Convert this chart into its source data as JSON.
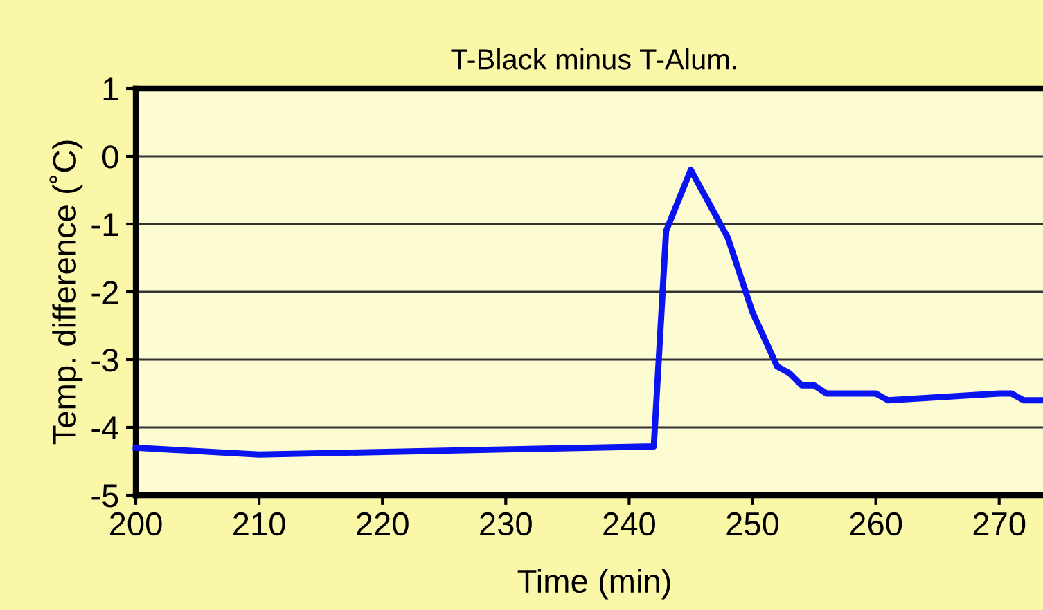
{
  "chart_data": {
    "type": "line",
    "title": "T-Black minus T-Alum.",
    "xlabel": "Time (min)",
    "ylabel": "Temp. difference (˚C)",
    "series": [
      {
        "color": "#0a14f0",
        "x": [
          200,
          210,
          242,
          243,
          245,
          248,
          250,
          252,
          253,
          254,
          255,
          256,
          260,
          261,
          270,
          271,
          272,
          274
        ],
        "values": [
          -4.3,
          -4.4,
          -4.28,
          -1.1,
          -0.2,
          -1.2,
          -2.3,
          -3.1,
          -3.2,
          -3.38,
          -3.38,
          -3.5,
          -3.5,
          -3.6,
          -3.5,
          -3.5,
          -3.6,
          -3.6
        ]
      }
    ],
    "xlim": [
      200,
      274.4
    ],
    "xticks": [
      200,
      210,
      220,
      230,
      240,
      250,
      260,
      270
    ],
    "ylim": [
      -5,
      1
    ],
    "yticks": [
      -5,
      -4,
      -3,
      -2,
      -1,
      0,
      1
    ],
    "grid": "y",
    "marker": "none",
    "line_style": "solid"
  }
}
